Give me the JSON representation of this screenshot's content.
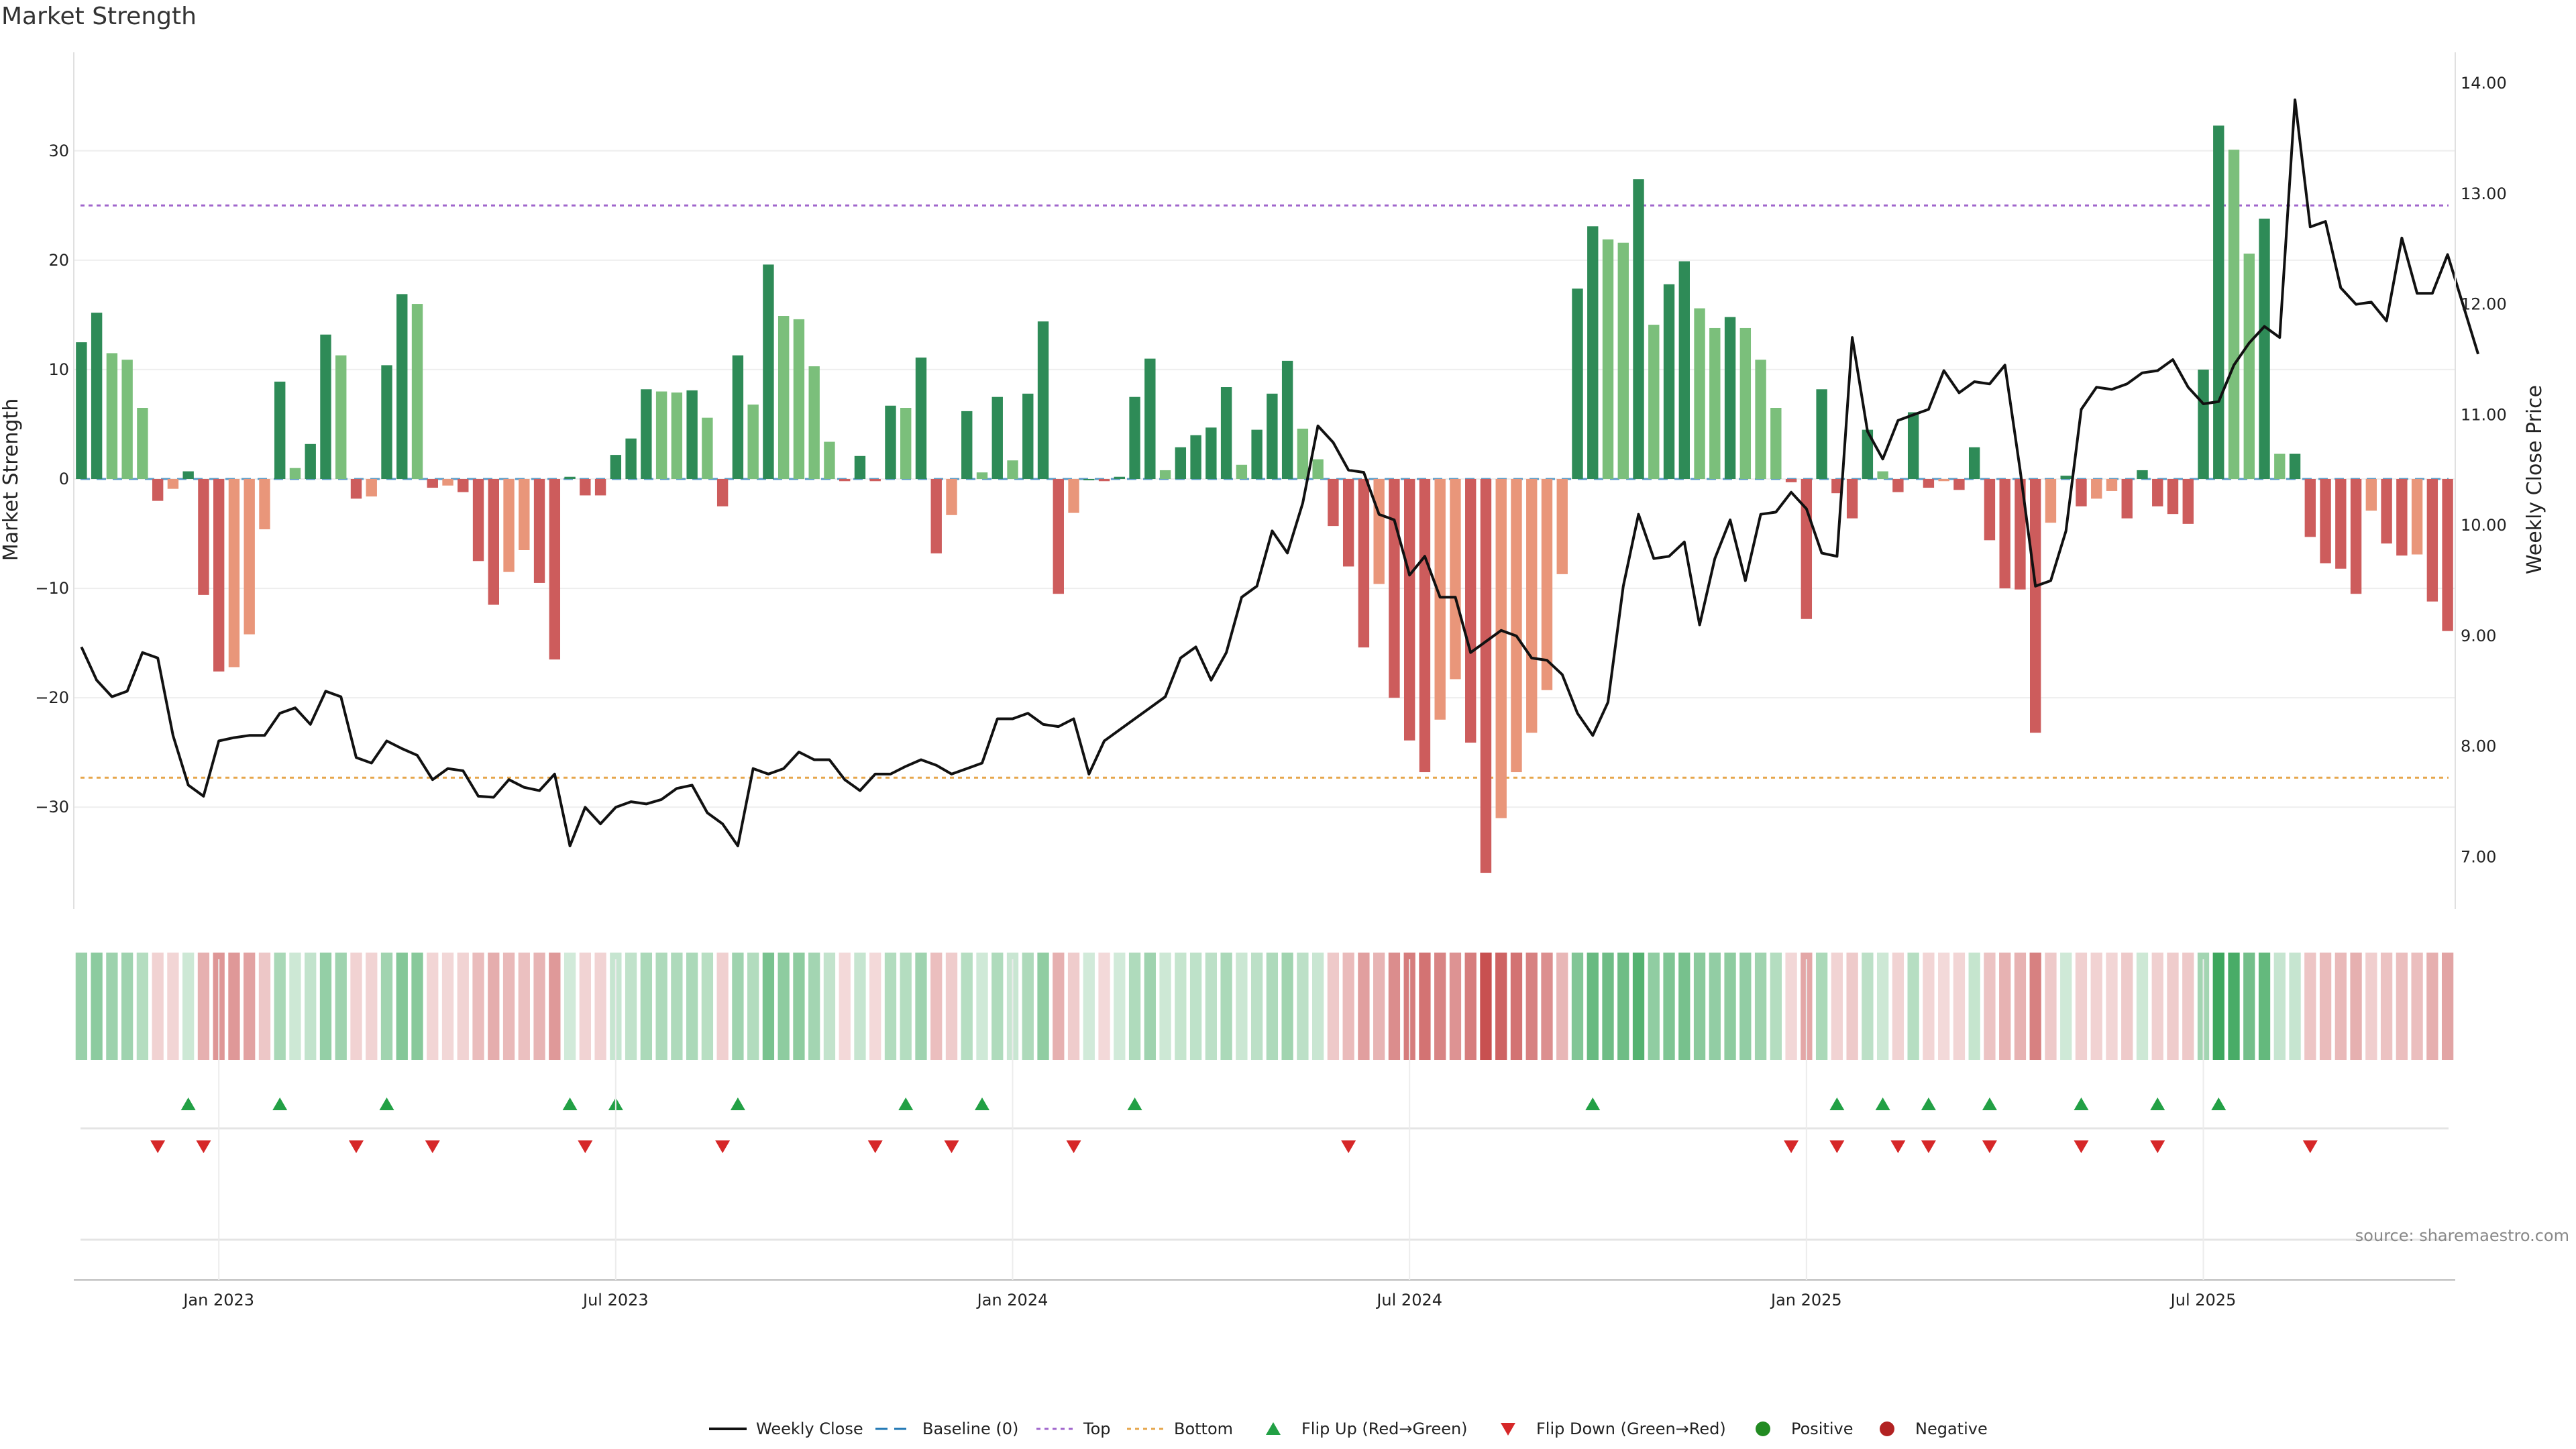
{
  "chart_data": {
    "title": "Market Strength",
    "ylabel_left": "Market Strength",
    "ylabel_right": "Weekly Close Price",
    "source": "source: sharemaestro.com",
    "ylim_left": [
      -39,
      39
    ],
    "ylim_right": [
      6.56,
      14.28
    ],
    "yticks_left": [
      "30",
      "20",
      "10",
      "0",
      "−10",
      "−20",
      "−30"
    ],
    "yticks_left_values": [
      30,
      20,
      10,
      0,
      -10,
      -20,
      -30
    ],
    "yticks_right": [
      "14.00",
      "13.00",
      "12.00",
      "11.00",
      "10.00",
      "9.00",
      "8.00",
      "7.00"
    ],
    "yticks_right_values": [
      14,
      13,
      12,
      11,
      10,
      9,
      8,
      7
    ],
    "xticks": [
      "Jan 2023",
      "Jul 2023",
      "Jan 2024",
      "Jul 2024",
      "Jan 2025",
      "Jul 2025"
    ],
    "xticks_week": [
      9,
      35,
      61,
      87,
      113,
      139
    ],
    "top_line": 25,
    "bottom_line": -27.3,
    "colors": {
      "pos_strong": "#2e8b57",
      "pos_light": "#7bbf7b",
      "neg_strong": "#cd5c5c",
      "neg_light": "#e9967a",
      "top": "#a066cc",
      "bottom": "#e6a64c",
      "baseline": "#1f77b4",
      "flip_up": "#22a045",
      "flip_down": "#d62728",
      "positive_dot": "#228b22",
      "negative_dot": "#b22222",
      "close": "#111111"
    },
    "series": [
      {
        "name": "Weekly Close",
        "type": "line",
        "values": [
          8.9,
          8.6,
          8.45,
          8.5,
          8.85,
          8.8,
          8.1,
          7.65,
          7.55,
          8.05,
          8.08,
          8.1,
          8.1,
          8.3,
          8.35,
          8.2,
          8.5,
          8.45,
          7.9,
          7.85,
          8.05,
          7.98,
          7.92,
          7.7,
          7.8,
          7.78,
          7.55,
          7.54,
          7.7,
          7.63,
          7.6,
          7.75,
          7.1,
          7.45,
          7.3,
          7.45,
          7.5,
          7.48,
          7.52,
          7.62,
          7.65,
          7.4,
          7.3,
          7.1,
          7.8,
          7.75,
          7.8,
          7.95,
          7.88,
          7.88,
          7.7,
          7.6,
          7.75,
          7.75,
          7.82,
          7.88,
          7.83,
          7.75,
          7.8,
          7.85,
          8.25,
          8.25,
          8.3,
          8.2,
          8.18,
          8.25,
          7.75,
          8.05,
          8.15,
          8.25,
          8.35,
          8.45,
          8.8,
          8.9,
          8.6,
          8.85,
          9.35,
          9.45,
          9.95,
          9.75,
          10.2,
          10.9,
          10.75,
          10.5,
          10.48,
          10.1,
          10.05,
          9.55,
          9.72,
          9.35,
          9.35,
          8.85,
          8.95,
          9.05,
          9.0,
          8.8,
          8.78,
          8.65,
          8.3,
          8.1,
          8.4,
          9.45,
          10.1,
          9.7,
          9.72,
          9.85,
          9.1,
          9.7,
          10.05,
          9.5,
          10.1,
          10.12,
          10.3,
          10.15,
          9.75,
          9.72,
          11.7,
          10.85,
          10.6,
          10.95,
          11.0,
          11.05,
          11.4,
          11.2,
          11.3,
          11.28,
          11.45,
          10.5,
          9.45,
          9.5,
          9.95,
          11.05,
          11.25,
          11.23,
          11.28,
          11.38,
          11.4,
          11.5,
          11.25,
          11.1,
          11.12,
          11.45,
          11.65,
          11.8,
          11.7,
          13.85,
          12.7,
          12.75,
          12.15,
          12.0,
          12.02,
          11.85,
          12.6,
          12.1,
          12.1,
          12.45,
          12.0,
          11.55
        ]
      },
      {
        "name": "Market Strength",
        "type": "bar",
        "values": [
          12.5,
          15.2,
          11.5,
          10.9,
          6.5,
          -2,
          -0.9,
          0.7,
          -10.6,
          -17.6,
          -17.2,
          -14.2,
          -4.6,
          8.9,
          1.0,
          3.2,
          13.2,
          11.3,
          -1.8,
          -1.6,
          10.4,
          16.9,
          16.0,
          -0.8,
          -0.6,
          -1.2,
          -7.5,
          -11.5,
          -8.5,
          -6.5,
          -9.5,
          -16.5,
          0.2,
          -1.5,
          -1.5,
          2.2,
          3.7,
          8.2,
          8.0,
          7.9,
          8.1,
          5.6,
          -2.5,
          11.3,
          6.8,
          19.6,
          14.9,
          14.6,
          10.3,
          3.4,
          -0.2,
          2.1,
          -0.2,
          6.7,
          6.5,
          11.1,
          -6.8,
          -3.3,
          6.2,
          0.6,
          7.5,
          1.7,
          7.8,
          14.4,
          -10.5,
          -3.1,
          0,
          -0.2,
          0.2,
          7.5,
          11.0,
          0.8,
          2.9,
          4.0,
          4.7,
          8.4,
          1.3,
          4.5,
          7.8,
          10.8,
          4.6,
          1.8,
          -4.3,
          -8.0,
          -15.4,
          -9.6,
          -20.0,
          -23.9,
          -26.8,
          -22.0,
          -18.3,
          -24.1,
          -36.0,
          -31.0,
          -26.8,
          -23.2,
          -19.3,
          -8.7,
          17.4,
          23.1,
          21.9,
          21.6,
          27.4,
          14.1,
          17.8,
          19.9,
          15.6,
          13.8,
          14.8,
          13.8,
          10.9,
          6.5,
          -0.3,
          -12.8,
          8.2,
          -1.3,
          -3.6,
          4.5,
          0.7,
          -1.2,
          6.1,
          -0.8,
          -0.2,
          -1.0,
          2.9,
          -5.6,
          -10.0,
          -10.1,
          -23.2,
          -4.0,
          0.3,
          -2.5,
          -1.8,
          -1.1,
          -3.6,
          0.8,
          -2.5,
          -3.2,
          -4.1,
          10.0,
          32.3,
          30.1,
          20.6,
          23.8,
          2.3,
          2.3,
          -5.3,
          -7.7,
          -8.2,
          -10.5,
          -2.9,
          -5.9,
          -7.0,
          -6.9,
          -11.2,
          -13.9
        ]
      }
    ],
    "flip_up_weeks": [
      7,
      13,
      20,
      32,
      35,
      43,
      54,
      59,
      69,
      99,
      115,
      118,
      121,
      125,
      131,
      136,
      140
    ],
    "flip_down_weeks": [
      5,
      8,
      18,
      23,
      33,
      42,
      52,
      57,
      65,
      83,
      112,
      115,
      119,
      121,
      125,
      131,
      136,
      146
    ],
    "legend": [
      {
        "label": "Weekly Close",
        "kind": "solid-line"
      },
      {
        "label": "Baseline (0)",
        "kind": "dashed-line"
      },
      {
        "label": "Top",
        "kind": "dotted-purple"
      },
      {
        "label": "Bottom",
        "kind": "dotted-orange"
      },
      {
        "label": "Flip Up (Red→Green)",
        "kind": "triangle-up"
      },
      {
        "label": "Flip Down (Green→Red)",
        "kind": "triangle-down"
      },
      {
        "label": "Positive",
        "kind": "dot-green"
      },
      {
        "label": "Negative",
        "kind": "dot-red"
      }
    ]
  }
}
